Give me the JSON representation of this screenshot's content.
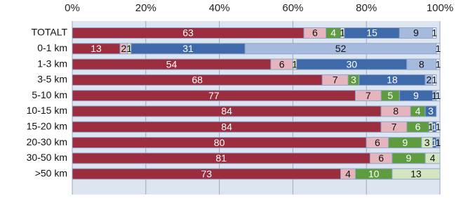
{
  "chart_data": {
    "type": "stacked-bar-horizontal",
    "categories": [
      "TOTALT",
      "0-1 km",
      "1-3 km",
      "3-5 km",
      "5-10 km",
      "10-15 km",
      "15-20 km",
      "20-30 km",
      "30-50 km",
      ">50 km"
    ],
    "series": [
      {
        "color": "#9b2d3f",
        "values": [
          63,
          13,
          54,
          68,
          77,
          84,
          84,
          80,
          81,
          73
        ]
      },
      {
        "color": "#e6b4bc",
        "values": [
          6,
          2,
          6,
          7,
          7,
          8,
          7,
          6,
          6,
          4
        ]
      },
      {
        "color": "#5e9c3f",
        "values": [
          4,
          null,
          null,
          3,
          5,
          4,
          6,
          9,
          9,
          10
        ]
      },
      {
        "color": "#d3e6c0",
        "values": [
          1,
          1,
          1,
          null,
          null,
          null,
          1,
          3,
          4,
          13
        ]
      },
      {
        "color": "#3f6aa9",
        "values": [
          15,
          31,
          30,
          18,
          9,
          3,
          1,
          1,
          null,
          null
        ]
      },
      {
        "color": "#a6badd",
        "values": [
          9,
          52,
          8,
          2,
          1,
          null,
          null,
          1,
          null,
          null
        ]
      },
      {
        "color": "#e9eef7",
        "values": [
          1,
          1,
          1,
          1,
          1,
          null,
          1,
          null,
          null,
          null
        ]
      }
    ],
    "xlim": [
      0,
      100
    ],
    "xticks": [
      {
        "value": 0,
        "label": "0%"
      },
      {
        "value": 20,
        "label": "20%"
      },
      {
        "value": 40,
        "label": "40%"
      },
      {
        "value": 60,
        "label": "60%"
      },
      {
        "value": 80,
        "label": "80%"
      },
      {
        "value": 100,
        "label": "100%"
      }
    ],
    "grid": true
  }
}
